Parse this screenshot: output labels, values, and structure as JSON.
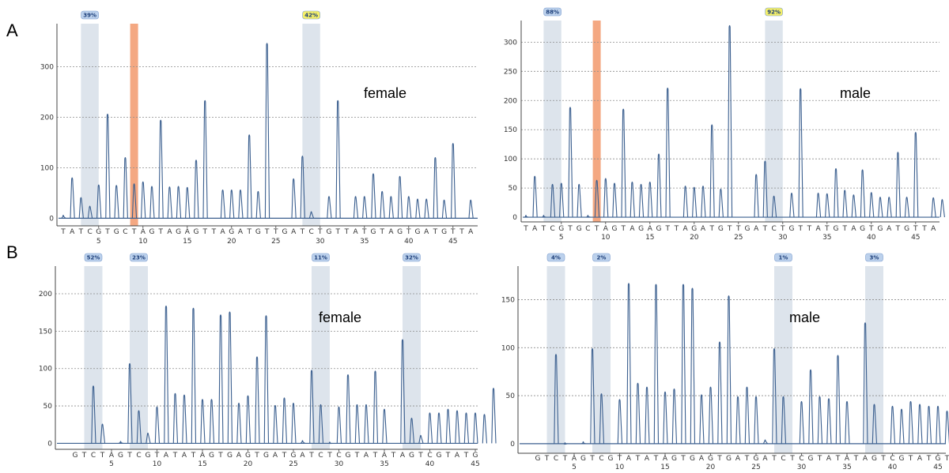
{
  "figure": {
    "panel_labels": [
      "A",
      "B"
    ]
  },
  "colors": {
    "trace": "#3b5f8f",
    "highlight": "#dde4ec",
    "marker": "#f4a882",
    "badge_blue_fill": "#bcd1ec",
    "badge_yellow_fill": "#f4ef6a",
    "grid": "#8c8c8c",
    "axis": "#444444"
  },
  "chart_data": [
    {
      "type": "line",
      "panel": "A",
      "annotation": "female",
      "sequence": "TATCGTGCTAGTAGAGTTAGATGTTGATCTGTTATGTAGTGATGTTAG",
      "x_ticks": [
        5,
        10,
        15,
        20,
        25,
        30,
        35,
        40,
        45
      ],
      "y_ticks": [
        0,
        100,
        200,
        300
      ],
      "ylim": [
        -15,
        385
      ],
      "grid": true,
      "highlights": [
        {
          "pos": 3,
          "badge": "39%",
          "badge_color": "blue"
        },
        {
          "pos": 28,
          "badge": "42%",
          "badge_color": "yellow"
        }
      ],
      "marker_pos": 8,
      "peaks": [
        {
          "x": 0,
          "y": 8
        },
        {
          "x": 1,
          "y": 82
        },
        {
          "x": 2,
          "y": 43
        },
        {
          "x": 3,
          "y": 26
        },
        {
          "x": 4,
          "y": 68
        },
        {
          "x": 5,
          "y": 208
        },
        {
          "x": 6,
          "y": 67
        },
        {
          "x": 7,
          "y": 122
        },
        {
          "x": 8,
          "y": 70
        },
        {
          "x": 9,
          "y": 74
        },
        {
          "x": 10,
          "y": 65
        },
        {
          "x": 11,
          "y": 196
        },
        {
          "x": 12,
          "y": 64
        },
        {
          "x": 13,
          "y": 65
        },
        {
          "x": 14,
          "y": 63
        },
        {
          "x": 15,
          "y": 117
        },
        {
          "x": 16,
          "y": 235
        },
        {
          "x": 18,
          "y": 58
        },
        {
          "x": 19,
          "y": 58
        },
        {
          "x": 20,
          "y": 58
        },
        {
          "x": 21,
          "y": 167
        },
        {
          "x": 22,
          "y": 55
        },
        {
          "x": 23,
          "y": 348
        },
        {
          "x": 26,
          "y": 80
        },
        {
          "x": 27,
          "y": 125
        },
        {
          "x": 28,
          "y": 15
        },
        {
          "x": 30,
          "y": 45
        },
        {
          "x": 31,
          "y": 235
        },
        {
          "x": 33,
          "y": 45
        },
        {
          "x": 34,
          "y": 45
        },
        {
          "x": 35,
          "y": 90
        },
        {
          "x": 36,
          "y": 55
        },
        {
          "x": 37,
          "y": 45
        },
        {
          "x": 38,
          "y": 85
        },
        {
          "x": 39,
          "y": 45
        },
        {
          "x": 40,
          "y": 40
        },
        {
          "x": 41,
          "y": 40
        },
        {
          "x": 42,
          "y": 122
        },
        {
          "x": 43,
          "y": 38
        },
        {
          "x": 44,
          "y": 150
        },
        {
          "x": 46,
          "y": 38
        }
      ]
    },
    {
      "type": "line",
      "panel": "A",
      "annotation": "male",
      "sequence": "TATCGTGCTAGTAGAGTTAGATGTTGATCTGTTATGTAGTGATGTTAG",
      "x_ticks": [
        5,
        10,
        15,
        20,
        25,
        30,
        35,
        40,
        45
      ],
      "y_ticks": [
        0,
        50,
        100,
        150,
        200,
        250,
        300
      ],
      "ylim": [
        -8,
        337
      ],
      "grid": true,
      "highlights": [
        {
          "pos": 3,
          "badge": "88%",
          "badge_color": "blue"
        },
        {
          "pos": 28,
          "badge": "92%",
          "badge_color": "yellow"
        }
      ],
      "marker_pos": 8,
      "peaks": [
        {
          "x": 0,
          "y": 5
        },
        {
          "x": 1,
          "y": 72
        },
        {
          "x": 2,
          "y": 5
        },
        {
          "x": 3,
          "y": 58
        },
        {
          "x": 4,
          "y": 60
        },
        {
          "x": 5,
          "y": 190
        },
        {
          "x": 6,
          "y": 58
        },
        {
          "x": 7,
          "y": 5
        },
        {
          "x": 8,
          "y": 65
        },
        {
          "x": 9,
          "y": 68
        },
        {
          "x": 10,
          "y": 60
        },
        {
          "x": 11,
          "y": 187
        },
        {
          "x": 12,
          "y": 62
        },
        {
          "x": 13,
          "y": 58
        },
        {
          "x": 14,
          "y": 62
        },
        {
          "x": 15,
          "y": 110
        },
        {
          "x": 16,
          "y": 223
        },
        {
          "x": 18,
          "y": 55
        },
        {
          "x": 19,
          "y": 53
        },
        {
          "x": 20,
          "y": 55
        },
        {
          "x": 21,
          "y": 160
        },
        {
          "x": 22,
          "y": 50
        },
        {
          "x": 23,
          "y": 330
        },
        {
          "x": 26,
          "y": 75
        },
        {
          "x": 27,
          "y": 98
        },
        {
          "x": 28,
          "y": 38
        },
        {
          "x": 30,
          "y": 43
        },
        {
          "x": 31,
          "y": 222
        },
        {
          "x": 33,
          "y": 43
        },
        {
          "x": 34,
          "y": 42
        },
        {
          "x": 35,
          "y": 85
        },
        {
          "x": 36,
          "y": 48
        },
        {
          "x": 37,
          "y": 40
        },
        {
          "x": 38,
          "y": 83
        },
        {
          "x": 39,
          "y": 44
        },
        {
          "x": 40,
          "y": 36
        },
        {
          "x": 41,
          "y": 36
        },
        {
          "x": 42,
          "y": 113
        },
        {
          "x": 43,
          "y": 36
        },
        {
          "x": 44,
          "y": 147
        },
        {
          "x": 46,
          "y": 35
        },
        {
          "x": 47,
          "y": 32
        }
      ]
    },
    {
      "type": "line",
      "panel": "B",
      "annotation": "female",
      "sequence": "GTCTAGTCGTATATAGTGAGTGATGATCTCGTATATAGTCGTATGTGTG",
      "x_ticks": [
        5,
        10,
        15,
        20,
        25,
        30,
        35,
        40,
        45
      ],
      "y_ticks": [
        0,
        50,
        100,
        150,
        200
      ],
      "ylim": [
        -8,
        237
      ],
      "grid": true,
      "highlights": [
        {
          "pos": 2,
          "badge": "52%",
          "badge_color": "blue"
        },
        {
          "pos": 7,
          "badge": "23%",
          "badge_color": "blue"
        },
        {
          "pos": 27,
          "badge": "11%",
          "badge_color": "blue"
        },
        {
          "pos": 37,
          "badge": "32%",
          "badge_color": "blue"
        }
      ],
      "peaks": [
        {
          "x": 2,
          "y": 78
        },
        {
          "x": 3,
          "y": 27
        },
        {
          "x": 5,
          "y": 4
        },
        {
          "x": 6,
          "y": 108
        },
        {
          "x": 7,
          "y": 45
        },
        {
          "x": 8,
          "y": 15
        },
        {
          "x": 9,
          "y": 50
        },
        {
          "x": 10,
          "y": 185
        },
        {
          "x": 11,
          "y": 68
        },
        {
          "x": 12,
          "y": 66
        },
        {
          "x": 13,
          "y": 182
        },
        {
          "x": 14,
          "y": 60
        },
        {
          "x": 15,
          "y": 60
        },
        {
          "x": 16,
          "y": 173
        },
        {
          "x": 17,
          "y": 177
        },
        {
          "x": 18,
          "y": 55
        },
        {
          "x": 19,
          "y": 65
        },
        {
          "x": 20,
          "y": 117
        },
        {
          "x": 21,
          "y": 172
        },
        {
          "x": 22,
          "y": 52
        },
        {
          "x": 23,
          "y": 62
        },
        {
          "x": 24,
          "y": 55
        },
        {
          "x": 25,
          "y": 5
        },
        {
          "x": 26,
          "y": 99
        },
        {
          "x": 27,
          "y": 53
        },
        {
          "x": 28,
          "y": 3
        },
        {
          "x": 29,
          "y": 50
        },
        {
          "x": 30,
          "y": 93
        },
        {
          "x": 31,
          "y": 53
        },
        {
          "x": 32,
          "y": 53
        },
        {
          "x": 33,
          "y": 98
        },
        {
          "x": 34,
          "y": 47
        },
        {
          "x": 36,
          "y": 140
        },
        {
          "x": 37,
          "y": 35
        },
        {
          "x": 38,
          "y": 12
        },
        {
          "x": 39,
          "y": 42
        },
        {
          "x": 40,
          "y": 42
        },
        {
          "x": 41,
          "y": 47
        },
        {
          "x": 42,
          "y": 45
        },
        {
          "x": 43,
          "y": 42
        },
        {
          "x": 44,
          "y": 42
        },
        {
          "x": 45,
          "y": 40
        },
        {
          "x": 46,
          "y": 75
        }
      ]
    },
    {
      "type": "line",
      "panel": "B",
      "annotation": "male",
      "sequence": "GTCTAGTCGTATATAGTGAGTGATGATCTCGTATATAGTCGTATGTGTG",
      "x_ticks": [
        5,
        10,
        15,
        20,
        25,
        30,
        35,
        40,
        45
      ],
      "y_ticks": [
        0,
        50,
        100,
        150
      ],
      "ylim": [
        -10,
        185
      ],
      "grid": true,
      "highlights": [
        {
          "pos": 2,
          "badge": "4%",
          "badge_color": "blue"
        },
        {
          "pos": 7,
          "badge": "2%",
          "badge_color": "blue"
        },
        {
          "pos": 27,
          "badge": "1%",
          "badge_color": "blue"
        },
        {
          "pos": 37,
          "badge": "3%",
          "badge_color": "blue"
        }
      ],
      "peaks": [
        {
          "x": 2,
          "y": 94
        },
        {
          "x": 3,
          "y": 2
        },
        {
          "x": 5,
          "y": 3
        },
        {
          "x": 6,
          "y": 100
        },
        {
          "x": 7,
          "y": 53
        },
        {
          "x": 9,
          "y": 47
        },
        {
          "x": 10,
          "y": 168
        },
        {
          "x": 11,
          "y": 64
        },
        {
          "x": 12,
          "y": 60
        },
        {
          "x": 13,
          "y": 167
        },
        {
          "x": 14,
          "y": 55
        },
        {
          "x": 15,
          "y": 58
        },
        {
          "x": 16,
          "y": 167
        },
        {
          "x": 17,
          "y": 163
        },
        {
          "x": 18,
          "y": 52
        },
        {
          "x": 19,
          "y": 60
        },
        {
          "x": 20,
          "y": 107
        },
        {
          "x": 21,
          "y": 155
        },
        {
          "x": 22,
          "y": 50
        },
        {
          "x": 23,
          "y": 60
        },
        {
          "x": 24,
          "y": 50
        },
        {
          "x": 25,
          "y": 5
        },
        {
          "x": 26,
          "y": 100
        },
        {
          "x": 27,
          "y": 50
        },
        {
          "x": 29,
          "y": 45
        },
        {
          "x": 30,
          "y": 78
        },
        {
          "x": 31,
          "y": 50
        },
        {
          "x": 32,
          "y": 48
        },
        {
          "x": 33,
          "y": 93
        },
        {
          "x": 34,
          "y": 45
        },
        {
          "x": 36,
          "y": 127
        },
        {
          "x": 37,
          "y": 42
        },
        {
          "x": 39,
          "y": 40
        },
        {
          "x": 40,
          "y": 37
        },
        {
          "x": 41,
          "y": 45
        },
        {
          "x": 42,
          "y": 42
        },
        {
          "x": 43,
          "y": 40
        },
        {
          "x": 44,
          "y": 40
        },
        {
          "x": 45,
          "y": 35
        },
        {
          "x": 46,
          "y": 65
        },
        {
          "x": 47,
          "y": 70
        }
      ]
    }
  ]
}
